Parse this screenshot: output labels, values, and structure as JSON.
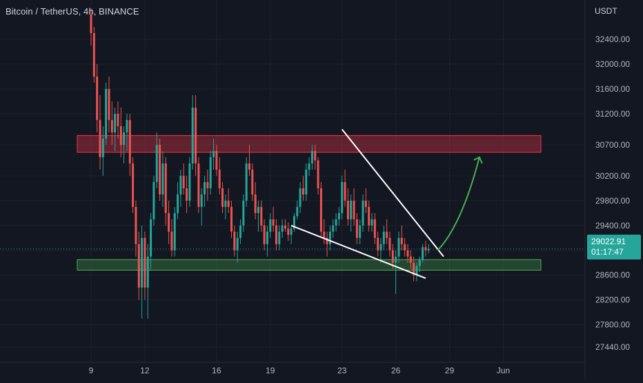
{
  "header": {
    "title": "Bitcoin / TetherUS, 4h, BINANCE"
  },
  "price_axis": {
    "currency": "USDT"
  },
  "current_price": {
    "value": "29022.91",
    "countdown": "01:17:47",
    "color": "#26a69a"
  },
  "colors": {
    "background": "#131722",
    "up": "#26a69a",
    "down": "#ef5350",
    "resistance_zone": "#f23645",
    "support_zone": "#4caf50",
    "trendline": "#ffffff",
    "projection_arrow": "#4caf50",
    "axis_text": "#b2b5be"
  },
  "chart_data": {
    "type": "candlestick",
    "title": "Bitcoin / TetherUS, 4h, BINANCE",
    "y_ticks": [
      32400,
      32000,
      31600,
      31200,
      30700,
      30200,
      29800,
      29400,
      29000,
      28600,
      28200,
      27800,
      27440
    ],
    "y_tick_labels": [
      "32400.00",
      "32000.00",
      "31600.00",
      "31200.00",
      "30700.00",
      "30200.00",
      "29800.00",
      "29400.00",
      "",
      "28600.00",
      "28200.00",
      "27800.00",
      "27440.00"
    ],
    "x_ticks": [
      {
        "label": "9",
        "idx": 0
      },
      {
        "label": "12",
        "idx": 18
      },
      {
        "label": "16",
        "idx": 42
      },
      {
        "label": "19",
        "idx": 60
      },
      {
        "label": "23",
        "idx": 84
      },
      {
        "label": "26",
        "idx": 102
      },
      {
        "label": "29",
        "idx": 120
      },
      {
        "label": "Jun",
        "idx": 138
      }
    ],
    "candles_ohlc": [
      [
        32800,
        32900,
        32300,
        32500
      ],
      [
        32500,
        32600,
        31700,
        31800
      ],
      [
        31800,
        32000,
        30900,
        31100
      ],
      [
        31100,
        31500,
        30300,
        30500
      ],
      [
        30500,
        31000,
        30200,
        30800
      ],
      [
        30800,
        31700,
        30700,
        31600
      ],
      [
        31600,
        31800,
        30900,
        31100
      ],
      [
        31100,
        31400,
        30700,
        30900
      ],
      [
        30900,
        31300,
        30600,
        31200
      ],
      [
        31200,
        31400,
        30800,
        31000
      ],
      [
        31000,
        31300,
        30500,
        30700
      ],
      [
        30700,
        31000,
        30400,
        30900
      ],
      [
        30900,
        31200,
        30600,
        31100
      ],
      [
        31100,
        31200,
        30200,
        30400
      ],
      [
        30400,
        30500,
        29600,
        29700
      ],
      [
        29700,
        29800,
        28900,
        29100
      ],
      [
        29100,
        29300,
        28200,
        28400
      ],
      [
        28400,
        29400,
        27900,
        29200
      ],
      [
        29200,
        29300,
        28200,
        28400
      ],
      [
        28400,
        29100,
        27900,
        28900
      ],
      [
        28900,
        29600,
        28700,
        29500
      ],
      [
        29500,
        30200,
        29400,
        30100
      ],
      [
        30100,
        30900,
        30000,
        30700
      ],
      [
        30700,
        30800,
        29800,
        29900
      ],
      [
        29900,
        30600,
        29700,
        30400
      ],
      [
        30400,
        30500,
        29400,
        29600
      ],
      [
        29600,
        29800,
        29100,
        29300
      ],
      [
        29300,
        29500,
        28900,
        29000
      ],
      [
        29000,
        29700,
        28900,
        29600
      ],
      [
        29600,
        30100,
        29500,
        29900
      ],
      [
        29900,
        30300,
        29700,
        30200
      ],
      [
        30200,
        30400,
        29900,
        30000
      ],
      [
        30000,
        30200,
        29600,
        29800
      ],
      [
        29800,
        30500,
        29700,
        30400
      ],
      [
        30400,
        31500,
        30300,
        31300
      ],
      [
        31300,
        31500,
        30200,
        30400
      ],
      [
        30400,
        30500,
        29600,
        29700
      ],
      [
        29700,
        30000,
        29400,
        29900
      ],
      [
        29900,
        30200,
        29700,
        30100
      ],
      [
        30100,
        30300,
        29800,
        30000
      ],
      [
        30000,
        30600,
        29900,
        30500
      ],
      [
        30500,
        30800,
        30300,
        30600
      ],
      [
        30600,
        30700,
        30200,
        30300
      ],
      [
        30300,
        30500,
        29900,
        30000
      ],
      [
        30000,
        30100,
        29600,
        29700
      ],
      [
        29700,
        29900,
        29500,
        29800
      ],
      [
        29800,
        30000,
        29600,
        29700
      ],
      [
        29700,
        29800,
        29200,
        29300
      ],
      [
        29300,
        29400,
        28900,
        29000
      ],
      [
        29000,
        29300,
        28800,
        29200
      ],
      [
        29200,
        29500,
        29100,
        29400
      ],
      [
        29400,
        29900,
        29300,
        29800
      ],
      [
        29800,
        30500,
        29700,
        30400
      ],
      [
        30400,
        30700,
        30200,
        30300
      ],
      [
        30300,
        30400,
        29800,
        29900
      ],
      [
        29900,
        30100,
        29500,
        29600
      ],
      [
        29600,
        29800,
        29300,
        29700
      ],
      [
        29700,
        29800,
        29300,
        29400
      ],
      [
        29400,
        29500,
        29000,
        29100
      ],
      [
        29100,
        29400,
        28900,
        29300
      ],
      [
        29300,
        29600,
        29200,
        29500
      ],
      [
        29500,
        29700,
        29300,
        29400
      ],
      [
        29400,
        29500,
        29000,
        29100
      ],
      [
        29100,
        29400,
        29000,
        29300
      ],
      [
        29300,
        29500,
        29200,
        29400
      ],
      [
        29400,
        29500,
        29300,
        29350
      ],
      [
        29350,
        29450,
        29150,
        29250
      ],
      [
        29250,
        29400,
        29100,
        29350
      ],
      [
        29350,
        29600,
        29300,
        29550
      ],
      [
        29550,
        29800,
        29500,
        29700
      ],
      [
        29700,
        30100,
        29600,
        30000
      ],
      [
        30000,
        30200,
        29800,
        29900
      ],
      [
        29900,
        30400,
        29800,
        30300
      ],
      [
        30300,
        30500,
        30200,
        30400
      ],
      [
        30400,
        30700,
        30300,
        30600
      ],
      [
        30600,
        30700,
        30300,
        30450
      ],
      [
        30450,
        30500,
        29900,
        30000
      ],
      [
        30000,
        30100,
        29200,
        29300
      ],
      [
        29300,
        29500,
        29100,
        29200
      ],
      [
        29200,
        29300,
        28900,
        29100
      ],
      [
        29100,
        29400,
        29000,
        29300
      ],
      [
        29300,
        29500,
        29200,
        29400
      ],
      [
        29400,
        29600,
        29300,
        29500
      ],
      [
        29500,
        29700,
        29400,
        29600
      ],
      [
        29600,
        30200,
        29500,
        30100
      ],
      [
        30100,
        30300,
        29700,
        29800
      ],
      [
        29800,
        30000,
        29400,
        29500
      ],
      [
        29500,
        29900,
        29300,
        29800
      ],
      [
        29800,
        30000,
        29400,
        29500
      ],
      [
        29500,
        29600,
        29100,
        29200
      ],
      [
        29200,
        29500,
        29100,
        29400
      ],
      [
        29400,
        29900,
        29300,
        29800
      ],
      [
        29800,
        30000,
        29600,
        29700
      ],
      [
        29700,
        29800,
        29300,
        29400
      ],
      [
        29400,
        29600,
        29300,
        29500
      ],
      [
        29500,
        29600,
        29100,
        29200
      ],
      [
        29200,
        29300,
        28900,
        29000
      ],
      [
        29000,
        29200,
        28800,
        29100
      ],
      [
        29100,
        29400,
        29000,
        29300
      ],
      [
        29300,
        29500,
        29100,
        29200
      ],
      [
        29200,
        29300,
        28900,
        29000
      ],
      [
        29000,
        29100,
        28700,
        28800
      ],
      [
        28800,
        29000,
        28300,
        28900
      ],
      [
        28900,
        29300,
        28800,
        29200
      ],
      [
        29200,
        29400,
        29000,
        29100
      ],
      [
        29100,
        29200,
        28900,
        29000
      ],
      [
        29000,
        29100,
        28800,
        28900
      ],
      [
        28900,
        29000,
        28700,
        28800
      ],
      [
        28800,
        28900,
        28500,
        28600
      ],
      [
        28600,
        28800,
        28500,
        28750
      ],
      [
        28750,
        28900,
        28650,
        28850
      ],
      [
        28850,
        29100,
        28800,
        29050
      ],
      [
        29050,
        29150,
        28900,
        29000
      ],
      [
        29000,
        29100,
        28950,
        29023
      ]
    ],
    "annotations": {
      "resistance_zone": {
        "y_top": 30850,
        "y_bottom": 30580,
        "x_start_idx": 0,
        "x_end_idx": 140
      },
      "support_zone": {
        "y_top": 28850,
        "y_bottom": 28680,
        "x_start_idx": 0,
        "x_end_idx": 140
      },
      "upper_trendline": [
        {
          "idx": 84,
          "y": 30950
        },
        {
          "idx": 118,
          "y": 28900
        }
      ],
      "lower_trendline": [
        {
          "idx": 67,
          "y": 29400
        },
        {
          "idx": 112,
          "y": 28550
        }
      ],
      "projection_arrow": [
        {
          "idx": 116,
          "y": 29000
        },
        {
          "idx": 124,
          "y": 29400
        },
        {
          "idx": 130,
          "y": 30500
        }
      ]
    }
  }
}
